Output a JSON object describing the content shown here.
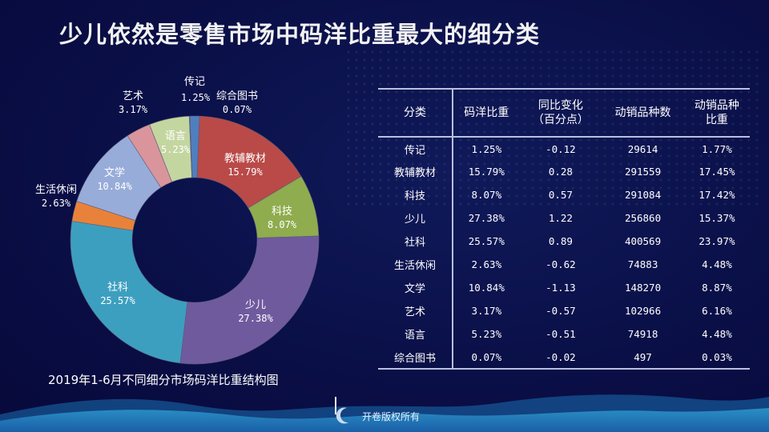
{
  "title": "少儿依然是零售市场中码洋比重最大的细分类",
  "caption": "2019年1-6月不同细分市场码洋比重结构图",
  "footer": "开卷版权所有",
  "chart_data": [
    {
      "type": "pie",
      "subtype": "donut",
      "title": "2019年1-6月不同细分市场码洋比重结构图",
      "categories": [
        "传记",
        "教辅教材",
        "科技",
        "少儿",
        "社科",
        "生活休闲",
        "文学",
        "艺术",
        "语言",
        "综合图书"
      ],
      "values": [
        1.25,
        15.79,
        8.07,
        27.38,
        25.57,
        2.63,
        10.84,
        3.17,
        5.23,
        0.07
      ],
      "labels": [
        "1.25%",
        "15.79%",
        "8.07%",
        "27.38%",
        "25.57%",
        "2.63%",
        "10.84%",
        "3.17%",
        "5.23%",
        "0.07%"
      ],
      "colors": [
        "#4f7fbf",
        "#b94a48",
        "#8fac4e",
        "#6f5a9e",
        "#3d9fbf",
        "#e8823a",
        "#98acd9",
        "#d9959b",
        "#c4d6a0",
        "#7ea0d0"
      ],
      "unit": "%"
    },
    {
      "type": "table",
      "columns": [
        "分类",
        "码洋比重",
        "同比变化（百分点）",
        "动销品种数",
        "动销品种比重"
      ],
      "rows": [
        [
          "传记",
          "1.25%",
          "-0.12",
          "29614",
          "1.77%"
        ],
        [
          "教辅教材",
          "15.79%",
          "0.28",
          "291559",
          "17.45%"
        ],
        [
          "科技",
          "8.07%",
          "0.57",
          "291084",
          "17.42%"
        ],
        [
          "少儿",
          "27.38%",
          "1.22",
          "256860",
          "15.37%"
        ],
        [
          "社科",
          "25.57%",
          "0.89",
          "400569",
          "23.97%"
        ],
        [
          "生活休闲",
          "2.63%",
          "-0.62",
          "74883",
          "4.48%"
        ],
        [
          "文学",
          "10.84%",
          "-1.13",
          "148270",
          "8.87%"
        ],
        [
          "艺术",
          "3.17%",
          "-0.57",
          "102966",
          "6.16%"
        ],
        [
          "语言",
          "5.23%",
          "-0.51",
          "74918",
          "4.48%"
        ],
        [
          "综合图书",
          "0.07%",
          "-0.02",
          "497",
          "0.03%"
        ]
      ]
    }
  ],
  "donut_labels": [
    {
      "name": "传记",
      "pct": "1.25%"
    },
    {
      "name": "教辅教材",
      "pct": "15.79%"
    },
    {
      "name": "科技",
      "pct": "8.07%"
    },
    {
      "name": "少儿",
      "pct": "27.38%"
    },
    {
      "name": "社科",
      "pct": "25.57%"
    },
    {
      "name": "生活休闲",
      "pct": "2.63%"
    },
    {
      "name": "文学",
      "pct": "10.84%"
    },
    {
      "name": "艺术",
      "pct": "3.17%"
    },
    {
      "name": "语言",
      "pct": "5.23%"
    },
    {
      "name": "综合图书",
      "pct": "0.07%"
    }
  ],
  "table": {
    "headers": [
      {
        "line1": "分类",
        "line2": ""
      },
      {
        "line1": "码洋比重",
        "line2": ""
      },
      {
        "line1": "同比变化",
        "line2": "（百分点）"
      },
      {
        "line1": "动销品种数",
        "line2": ""
      },
      {
        "line1": "动销品种",
        "line2": "比重"
      }
    ]
  }
}
